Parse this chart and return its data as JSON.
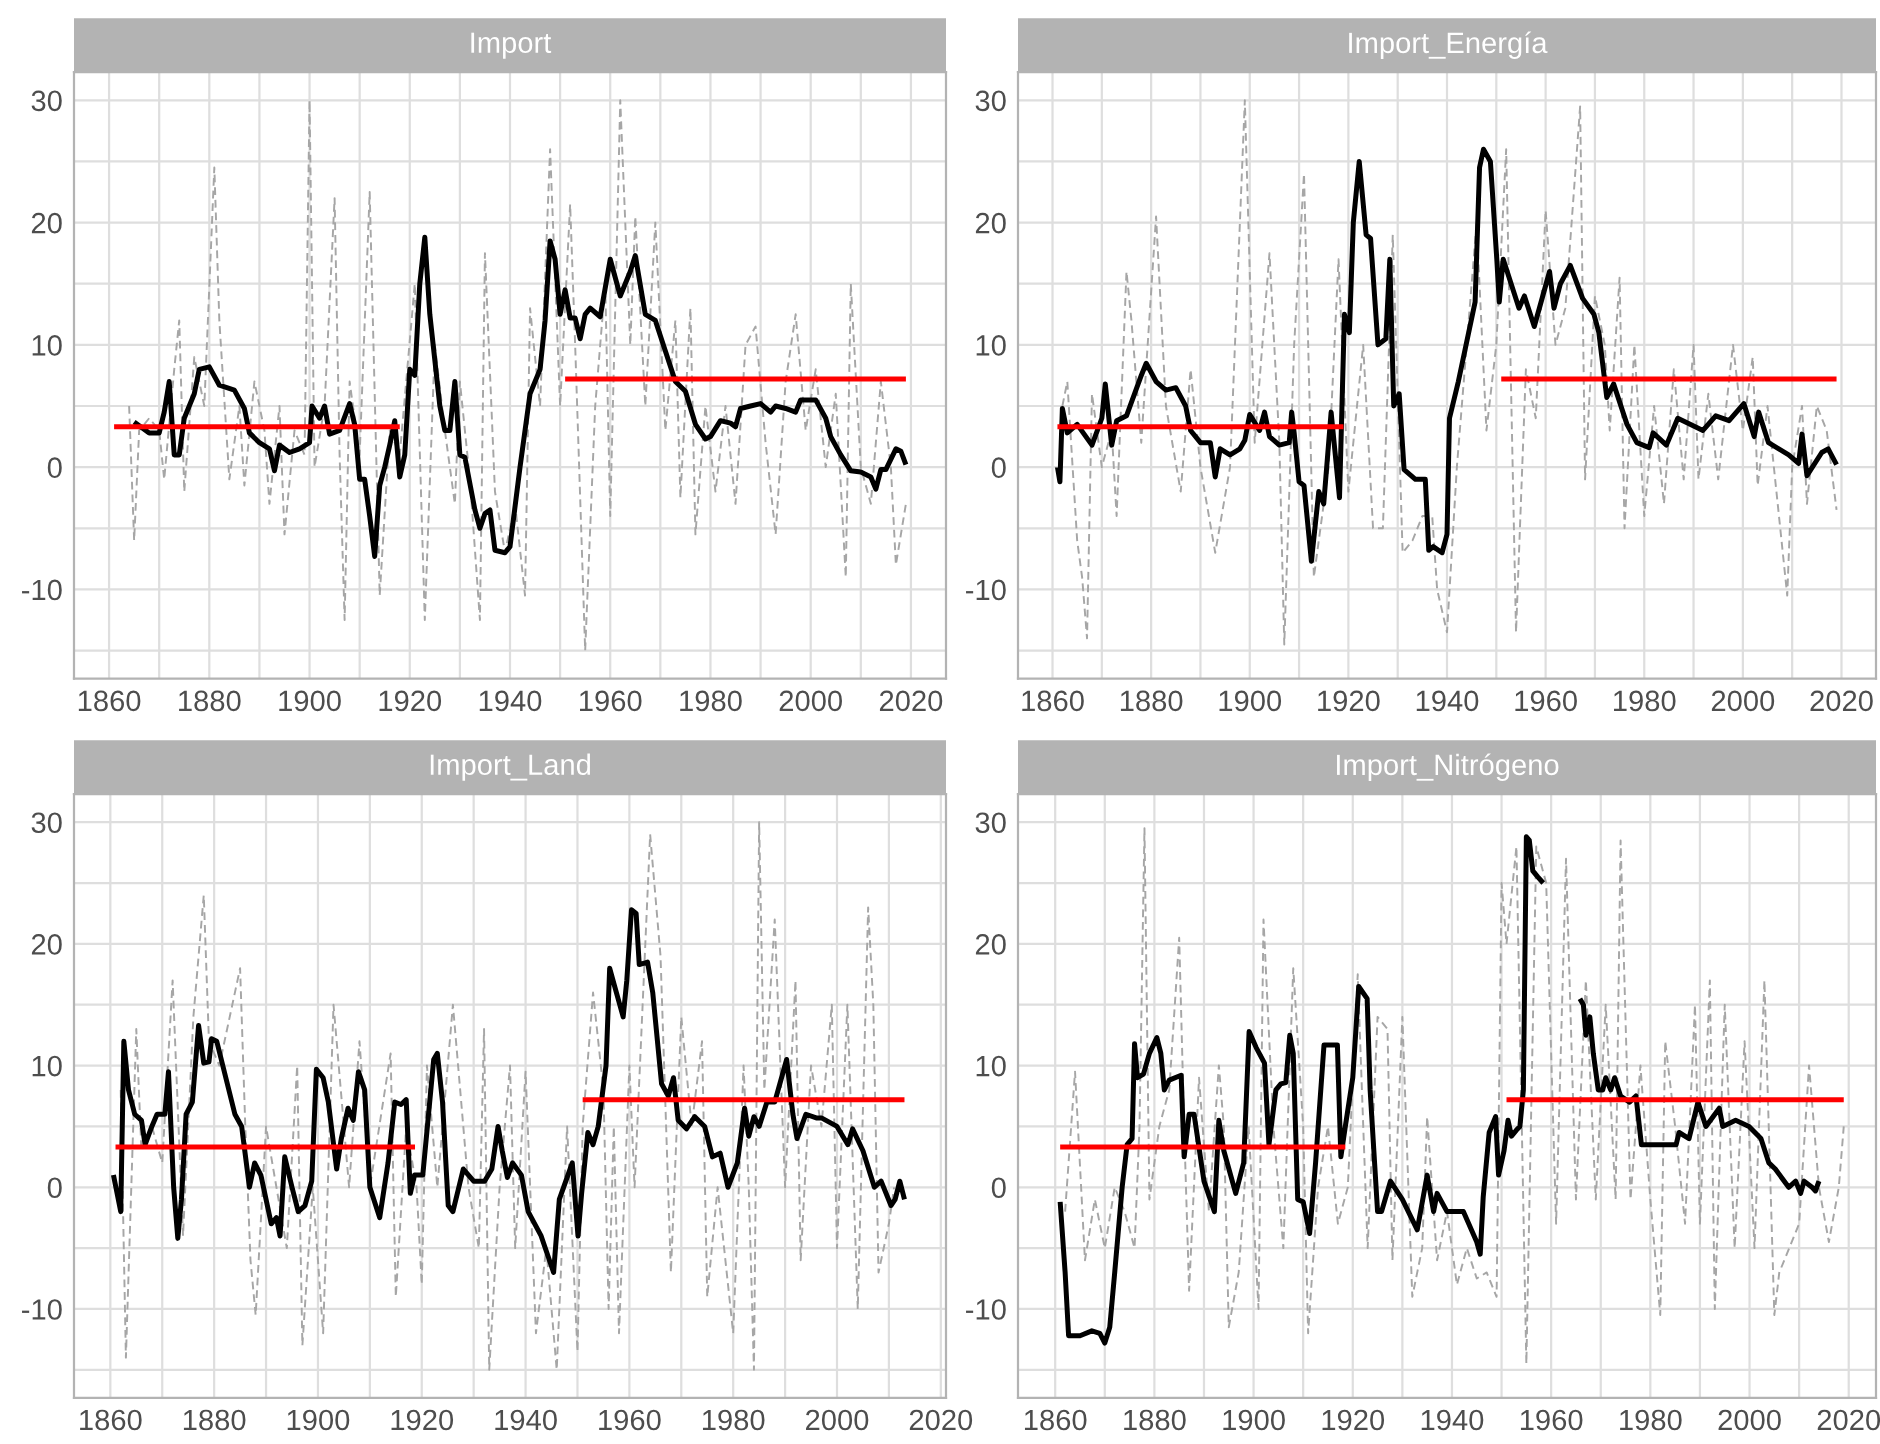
{
  "chart_data": [
    {
      "type": "line",
      "title": "Import",
      "xlim": [
        1853,
        2027
      ],
      "ylim": [
        -17.3,
        32.3
      ],
      "xticks": [
        1860,
        {
          "value": 1870,
          "label": null
        },
        1880,
        {
          "value": 1890,
          "label": null
        },
        1900,
        {
          "value": 1910,
          "label": null
        },
        1920,
        {
          "value": 1930,
          "label": null
        },
        1940,
        {
          "value": 1950,
          "label": null
        },
        1960,
        {
          "value": 1970,
          "label": null
        },
        1980,
        {
          "value": 1990,
          "label": null
        },
        2000,
        {
          "value": 2010,
          "label": null
        },
        2020
      ],
      "yticks": [
        {
          "value": -15,
          "label": null
        },
        -10,
        {
          "value": -5,
          "label": null
        },
        0,
        {
          "value": 5,
          "label": null
        },
        10,
        {
          "value": 15,
          "label": null
        },
        20,
        {
          "value": 25,
          "label": null
        },
        30
      ],
      "grid": true,
      "series": [
        {
          "color": "#a6a6a6",
          "line_style": "dashed",
          "x": [
            1864,
            1865,
            1866,
            1868,
            1870,
            1871,
            1873,
            1874,
            1875,
            1877,
            1879,
            1881,
            1882,
            1884,
            1886,
            1887,
            1889,
            1891,
            1892,
            1894,
            1895,
            1897,
            1899,
            1900,
            1901,
            1903,
            1905,
            1906,
            1907,
            1908,
            1910,
            1912,
            1914,
            1916,
            1918,
            1921,
            1923,
            1925,
            1927,
            1929,
            1930,
            1932,
            1934,
            1935,
            1937,
            1939,
            1941,
            1943,
            1944,
            1946,
            1948,
            1950,
            1952,
            1953,
            1955,
            1957,
            1959,
            1960,
            1962,
            1964,
            1965,
            1967,
            1969,
            1971,
            1973,
            1974,
            1976,
            1977,
            1979,
            1981,
            1983,
            1985,
            1987,
            1989,
            1991,
            1993,
            1995,
            1997,
            1999,
            2001,
            2003,
            2005,
            2007,
            2008,
            2010,
            2012,
            2014,
            2016,
            2017,
            2019
          ],
          "values": [
            5,
            -6,
            3,
            4,
            3,
            -1,
            8,
            12,
            -2,
            9,
            5,
            24.5,
            12,
            -1,
            5,
            -1.5,
            7,
            3,
            -3,
            5,
            -5.5,
            3,
            1,
            30,
            0,
            5,
            22,
            1,
            -12.5,
            7,
            1,
            22.5,
            -10.5,
            3,
            1,
            15,
            -12.5,
            10,
            3,
            -3,
            7,
            -1,
            -12.5,
            17.5,
            -2,
            -7,
            -3,
            -10.5,
            13,
            5,
            26,
            5,
            21.5,
            10,
            -15,
            5,
            15,
            -4,
            30,
            10,
            20.5,
            5,
            20,
            3,
            12,
            -2.5,
            13,
            -5.5,
            5,
            -2,
            5,
            -3,
            10,
            11.5,
            2,
            -5.5,
            7,
            12.5,
            3,
            8,
            0,
            6,
            -9,
            15,
            0,
            -3,
            7,
            0,
            -8,
            -3
          ]
        },
        {
          "color": "#000000",
          "line_style": "solid",
          "x": [
            1865,
            1868,
            1870,
            1871,
            1872,
            1873,
            1874,
            1875,
            1877,
            1878,
            1880,
            1882,
            1885,
            1887,
            1888,
            1890,
            1892,
            1893,
            1894,
            1896,
            1898,
            1900,
            1900.5,
            1902,
            1903,
            1904,
            1906,
            1908,
            1909,
            1910,
            1911,
            1912,
            1913,
            1914,
            1915,
            1916,
            1917,
            1918,
            1919,
            1920,
            1921,
            1922,
            1923,
            1924,
            1926,
            1927,
            1928,
            1929,
            1930,
            1931,
            1933,
            1934,
            1935,
            1936,
            1937,
            1939,
            1940,
            1942,
            1944,
            1946,
            1947,
            1948,
            1949,
            1950,
            1951,
            1952,
            1953,
            1954,
            1955,
            1956,
            1958,
            1960,
            1962,
            1964,
            1965,
            1967,
            1969,
            1971,
            1973,
            1975,
            1977,
            1979,
            1980,
            1982,
            1984,
            1985,
            1986,
            1988,
            1990,
            1992,
            1993,
            1995,
            1997,
            1998,
            2001,
            2003,
            2004,
            2006,
            2008,
            2010,
            2012,
            2013,
            2014,
            2015,
            2017,
            2018,
            2019
          ],
          "values": [
            3.7,
            2.8,
            2.8,
            4.5,
            7,
            1,
            1,
            4,
            6,
            8,
            8.2,
            6.7,
            6.3,
            4.8,
            2.8,
            2,
            1.5,
            -0.3,
            1.8,
            1.2,
            1.5,
            2,
            5,
            4,
            5,
            2.7,
            3,
            5.2,
            3.5,
            -1,
            -1,
            -4,
            -7.3,
            -1.5,
            0,
            1.8,
            3.8,
            -0.8,
            1,
            8,
            7.5,
            15,
            18.8,
            12.5,
            5,
            3,
            3,
            7,
            1,
            0.8,
            -3.5,
            -5,
            -3.8,
            -3.5,
            -6.8,
            -7,
            -6.5,
            0,
            6,
            8,
            12,
            18.5,
            17,
            12.5,
            14.5,
            12.2,
            12.2,
            10.5,
            12.5,
            13,
            12.3,
            17,
            14,
            16,
            17.3,
            12.5,
            12,
            9.5,
            7,
            6.2,
            3.5,
            2.3,
            2.5,
            3.8,
            3.6,
            3.3,
            4.8,
            5,
            5.2,
            4.5,
            5,
            4.8,
            4.5,
            5.5,
            5.5,
            4,
            2.5,
            1,
            -0.3,
            -0.4,
            -0.8,
            -1.8,
            -0.2,
            -0.2,
            1.5,
            1.3,
            0.2
          ]
        },
        {
          "color": "#ff0000",
          "line_style": "solid",
          "x": [
            1861,
            1918
          ],
          "values": [
            3.3,
            3.3
          ]
        },
        {
          "color": "#ff0000",
          "line_style": "solid",
          "x": [
            1951,
            2019
          ],
          "values": [
            7.2,
            7.2
          ]
        }
      ]
    },
    {
      "type": "line",
      "title": "Import_Energía",
      "xlim": [
        1853,
        2027
      ],
      "ylim": [
        -17.3,
        32.3
      ],
      "xticks": [
        1860,
        {
          "value": 1870,
          "label": null
        },
        1880,
        {
          "value": 1890,
          "label": null
        },
        1900,
        {
          "value": 1910,
          "label": null
        },
        1920,
        {
          "value": 1930,
          "label": null
        },
        1940,
        {
          "value": 1950,
          "label": null
        },
        1960,
        {
          "value": 1970,
          "label": null
        },
        1980,
        {
          "value": 1990,
          "label": null
        },
        2000,
        {
          "value": 2010,
          "label": null
        },
        2020
      ],
      "yticks": [
        {
          "value": -15,
          "label": null
        },
        -10,
        {
          "value": -5,
          "label": null
        },
        0,
        {
          "value": 5,
          "label": null
        },
        10,
        {
          "value": 15,
          "label": null
        },
        20,
        {
          "value": 25,
          "label": null
        },
        30
      ],
      "grid": true,
      "series": [
        {
          "color": "#a6a6a6",
          "line_style": "dashed",
          "x": [
            1862,
            1863,
            1865,
            1866,
            1867,
            1868,
            1870,
            1872,
            1873,
            1875,
            1876,
            1878,
            1881,
            1883,
            1886,
            1888,
            1890,
            1893,
            1896,
            1899,
            1901,
            1904,
            1906,
            1907,
            1909,
            1911,
            1913,
            1916,
            1918,
            1920,
            1923,
            1925,
            1927,
            1929,
            1931,
            1933,
            1935,
            1937,
            1938,
            1940,
            1942,
            1944,
            1946,
            1948,
            1950,
            1952,
            1954,
            1956,
            1958,
            1960,
            1962,
            1964,
            1967,
            1968,
            1970,
            1972,
            1973,
            1975,
            1976,
            1978,
            1980,
            1982,
            1984,
            1986,
            1988,
            1990,
            1991,
            1993,
            1995,
            1998,
            2000,
            2002,
            2003,
            2005,
            2009,
            2010,
            2012,
            2013,
            2015,
            2017,
            2019
          ],
          "values": [
            5,
            7,
            -6,
            -9,
            -14,
            6,
            0,
            3,
            -4,
            16,
            12,
            2,
            20.5,
            5,
            -2,
            8,
            0,
            -7,
            0,
            30,
            2,
            17.5,
            2,
            -14.5,
            10,
            24,
            -9,
            0,
            17,
            -2,
            10,
            -5,
            -5,
            19,
            -7,
            -6,
            -4,
            -4,
            -10,
            -13.5,
            0,
            10,
            20,
            3,
            10,
            26,
            -13.5,
            8,
            4,
            21,
            10,
            13,
            29.5,
            -1,
            14,
            10,
            3,
            15.5,
            -5,
            10,
            -4,
            5,
            -3,
            8,
            -1,
            10,
            -1,
            6,
            -1,
            10,
            3,
            9,
            -1.5,
            5,
            -10.5,
            0,
            5,
            -3,
            5,
            3,
            -3.5
          ]
        },
        {
          "color": "#000000",
          "line_style": "solid",
          "x": [
            1861,
            1861.5,
            1862,
            1863,
            1865,
            1868,
            1870,
            1870.7,
            1872,
            1873,
            1875,
            1878,
            1879,
            1881,
            1883,
            1885,
            1887,
            1888,
            1890,
            1892,
            1893,
            1894,
            1896,
            1898,
            1899,
            1900,
            1902,
            1903,
            1904,
            1906,
            1908,
            1908.5,
            1909,
            1910,
            1911,
            1912.5,
            1914,
            1915,
            1916.5,
            1918.2,
            1919.2,
            1920.2,
            1921,
            1922.2,
            1923.6,
            1924.5,
            1926,
            1927.6,
            1928.4,
            1929.2,
            1930.3,
            1931.3,
            1933.6,
            1935.6,
            1936.3,
            1937.2,
            1939,
            1940,
            1940.5,
            1942.3,
            1945.7,
            1946.6,
            1947.4,
            1948.8,
            1950.1,
            1950.6,
            1951.4,
            1953,
            1954.6,
            1955.7,
            1957.7,
            1960.8,
            1961.7,
            1963,
            1965,
            1967.5,
            1969.8,
            1970.8,
            1972.4,
            1973.8,
            1976.5,
            1978.5,
            1981,
            1981.8,
            1984.5,
            1986.8,
            1991.9,
            1994.5,
            1997.2,
            2000.2,
            2002.3,
            2003.2,
            2005.2,
            2009.3,
            2011.3,
            2012,
            2013,
            2016,
            2017.3,
            2019
          ],
          "values": [
            0,
            -1.2,
            4.8,
            2.8,
            3.5,
            1.8,
            4,
            6.8,
            1.8,
            3.8,
            4.2,
            7.5,
            8.5,
            7,
            6.3,
            6.5,
            5,
            3,
            2,
            2,
            -0.8,
            1.5,
            1,
            1.5,
            2.2,
            4.3,
            3,
            4.5,
            2.5,
            1.8,
            2,
            4.5,
            2.8,
            -1.2,
            -1.5,
            -7.7,
            -2,
            -3,
            4.5,
            -2.5,
            12.5,
            11,
            20,
            25,
            19,
            18.7,
            10,
            10.5,
            17,
            5,
            6,
            -0.2,
            -1,
            -1,
            -6.8,
            -6.5,
            -7,
            -5.5,
            4,
            7,
            13.5,
            24.5,
            26,
            25,
            17,
            13.5,
            17,
            15,
            13,
            14,
            11.5,
            16,
            13,
            15,
            16.5,
            13.8,
            12.5,
            11,
            5.7,
            6.8,
            3.5,
            2,
            1.6,
            2.8,
            1.8,
            4,
            3,
            4.2,
            3.8,
            5.2,
            2.5,
            4.5,
            2,
            1,
            0.3,
            2.7,
            -0.7,
            1.2,
            1.5,
            0.2
          ]
        },
        {
          "color": "#ff0000",
          "line_style": "solid",
          "x": [
            1861,
            1919
          ],
          "values": [
            3.3,
            3.3
          ]
        },
        {
          "color": "#ff0000",
          "line_style": "solid",
          "x": [
            1951,
            2019
          ],
          "values": [
            7.2,
            7.2
          ]
        }
      ]
    },
    {
      "type": "line",
      "title": "Import_Land",
      "xlim": [
        1853,
        2021
      ],
      "ylim": [
        -17.3,
        32.3
      ],
      "xticks": [
        1860,
        {
          "value": 1870,
          "label": null
        },
        1880,
        {
          "value": 1890,
          "label": null
        },
        1900,
        {
          "value": 1910,
          "label": null
        },
        1920,
        {
          "value": 1930,
          "label": null
        },
        1940,
        {
          "value": 1950,
          "label": null
        },
        1960,
        {
          "value": 1970,
          "label": null
        },
        1980,
        {
          "value": 1990,
          "label": null
        },
        2000,
        {
          "value": 2010,
          "label": null
        },
        2020
      ],
      "yticks": [
        {
          "value": -15,
          "label": null
        },
        -10,
        {
          "value": -5,
          "label": null
        },
        0,
        {
          "value": 5,
          "label": null
        },
        10,
        {
          "value": 15,
          "label": null
        },
        20,
        {
          "value": 25,
          "label": null
        },
        30
      ],
      "grid": true,
      "series": [
        {
          "color": "#a6a6a6",
          "line_style": "dashed",
          "x": [
            1862,
            1863,
            1865,
            1866,
            1868,
            1870,
            1872,
            1874,
            1876,
            1878,
            1879,
            1881,
            1885,
            1886,
            1887,
            1888,
            1890,
            1892,
            1894,
            1896,
            1897,
            1899,
            1901,
            1903,
            1905,
            1906,
            1908,
            1910,
            1914,
            1915,
            1917,
            1919,
            1920,
            1921,
            1923,
            1926,
            1927,
            1929,
            1931,
            1932,
            1933,
            1935,
            1937,
            1938,
            1940,
            1942,
            1944,
            1946,
            1948,
            1950,
            1951,
            1953,
            1955,
            1956,
            1957,
            1958,
            1960,
            1961,
            1964,
            1966,
            1968,
            1970,
            1972,
            1974,
            1975,
            1977,
            1980,
            1982,
            1983,
            1984,
            1985,
            1986,
            1988,
            1990,
            1992,
            1993,
            1995,
            1997,
            1999,
            2000,
            2002,
            2004,
            2006,
            2007,
            2008,
            2010,
            2011
          ],
          "values": [
            8,
            -14,
            13,
            3,
            5,
            2,
            17,
            -4,
            14,
            24,
            12,
            10,
            18,
            5,
            -6,
            -10.5,
            5,
            0,
            -5,
            10,
            -13,
            0,
            -12,
            15,
            5,
            0,
            12,
            0,
            11,
            -9,
            5,
            0,
            -8,
            10,
            0,
            15,
            10,
            0,
            -5,
            13,
            -15,
            0,
            10,
            -5,
            9.5,
            -12,
            -5,
            -15,
            5,
            -13.5,
            5,
            16,
            8,
            -10,
            5,
            -12,
            10,
            0,
            29,
            19,
            -7,
            14,
            5,
            12,
            -9,
            0,
            -12,
            10,
            0,
            -15,
            30,
            8,
            22,
            0,
            17,
            -6,
            10,
            5,
            15,
            -5,
            15,
            -10,
            23,
            15,
            -7,
            -3,
            0
          ]
        },
        {
          "color": "#000000",
          "line_style": "solid",
          "x": [
            1860.6,
            1862,
            1862.6,
            1863.5,
            1864.7,
            1866,
            1866.7,
            1868,
            1869,
            1870.5,
            1871.2,
            1872.2,
            1873,
            1873.7,
            1874.6,
            1875.8,
            1877,
            1878,
            1879,
            1879.5,
            1880.5,
            1884,
            1885.3,
            1886.8,
            1887.8,
            1889,
            1891,
            1892,
            1892.7,
            1893.6,
            1895,
            1896.2,
            1897.5,
            1898.8,
            1899.7,
            1901,
            1902,
            1903.6,
            1904.5,
            1905.8,
            1906.8,
            1907.8,
            1909,
            1910,
            1911.9,
            1913.5,
            1914.8,
            1916,
            1917,
            1917.8,
            1918.6,
            1920.2,
            1922.3,
            1923,
            1924,
            1925.1,
            1926,
            1928,
            1930,
            1932.1,
            1933.5,
            1934.7,
            1935.5,
            1936.5,
            1937.5,
            1939.2,
            1940.5,
            1943,
            1945.4,
            1946.5,
            1949,
            1950.1,
            1950.8,
            1952,
            1953,
            1954,
            1955.5,
            1956.2,
            1957.5,
            1958.8,
            1959.5,
            1960.4,
            1961.3,
            1961.9,
            1963.5,
            1964.5,
            1966.2,
            1967.5,
            1968.5,
            1969.4,
            1971,
            1972.6,
            1974.5,
            1976,
            1977.5,
            1979,
            1980.8,
            1982.2,
            1983,
            1984,
            1985,
            1986.5,
            1988,
            1990.3,
            1991.5,
            1992.3,
            1994,
            1996,
            1997,
            2000,
            2002.1,
            2003,
            2005,
            2007.2,
            2008.5,
            2010.4,
            2011.2,
            2012.1,
            2013
          ],
          "values": [
            1,
            -2,
            12,
            8,
            6,
            5.5,
            3.5,
            5,
            6,
            6,
            9.5,
            0,
            -4.2,
            -1,
            6,
            7,
            13.3,
            10.2,
            10.3,
            12.2,
            12,
            6,
            5,
            0,
            2,
            1,
            -3,
            -2.5,
            -4,
            2.5,
            0,
            -2,
            -1.5,
            0.5,
            9.7,
            9,
            7,
            1.5,
            4,
            6.5,
            5.5,
            9.5,
            8,
            0,
            -2.5,
            2,
            7,
            6.8,
            7.2,
            -0.5,
            1,
            1,
            10.5,
            11,
            7,
            -1.5,
            -2,
            1.5,
            0.5,
            0.5,
            1.5,
            5,
            3,
            0.8,
            2,
            1,
            -2,
            -4,
            -7,
            -1,
            2,
            -4,
            -0.5,
            4.5,
            3.5,
            5,
            10,
            18,
            16,
            14,
            17,
            22.8,
            22.5,
            18.3,
            18.5,
            16,
            8.5,
            7.5,
            9,
            5.5,
            4.8,
            5.8,
            5,
            2.5,
            2.8,
            0,
            2,
            6.5,
            4.2,
            5.8,
            5,
            7,
            7,
            10.5,
            6,
            4,
            6,
            5.7,
            5.7,
            5,
            3.5,
            4.8,
            3,
            0,
            0.5,
            -1.5,
            -1,
            0.5,
            -1
          ]
        },
        {
          "color": "#ff0000",
          "line_style": "solid",
          "x": [
            1861,
            1918.7
          ],
          "values": [
            3.3,
            3.3
          ]
        },
        {
          "color": "#ff0000",
          "line_style": "solid",
          "x": [
            1951,
            2013
          ],
          "values": [
            7.2,
            7.2
          ]
        }
      ]
    },
    {
      "type": "line",
      "title": "Import_Nitrógeno",
      "xlim": [
        1852.5,
        2025.5
      ],
      "ylim": [
        -17.3,
        32.3
      ],
      "xticks": [
        1860,
        {
          "value": 1870,
          "label": null
        },
        1880,
        {
          "value": 1890,
          "label": null
        },
        1900,
        {
          "value": 1910,
          "label": null
        },
        1920,
        {
          "value": 1930,
          "label": null
        },
        1940,
        {
          "value": 1950,
          "label": null
        },
        1960,
        {
          "value": 1970,
          "label": null
        },
        1980,
        {
          "value": 1990,
          "label": null
        },
        2000,
        {
          "value": 2010,
          "label": null
        },
        2020
      ],
      "yticks": [
        {
          "value": -15,
          "label": null
        },
        -10,
        {
          "value": -5,
          "label": null
        },
        0,
        {
          "value": 5,
          "label": null
        },
        10,
        {
          "value": 15,
          "label": null
        },
        20,
        {
          "value": 25,
          "label": null
        },
        30
      ],
      "grid": true,
      "series": [
        {
          "color": "#a6a6a6",
          "line_style": "dashed",
          "x": [
            1862,
            1864,
            1866,
            1868,
            1870,
            1872,
            1874,
            1876,
            1877,
            1878,
            1879,
            1881,
            1883,
            1885,
            1886,
            1887,
            1889,
            1891,
            1893,
            1894,
            1895,
            1897,
            1899,
            1901,
            1902,
            1904,
            1906,
            1908,
            1910,
            1911,
            1913,
            1915,
            1917,
            1919,
            1921,
            1923,
            1925,
            1927,
            1928,
            1930,
            1932,
            1934,
            1935,
            1937,
            1939,
            1941,
            1943,
            1945,
            1947,
            1949,
            1950,
            1951,
            1953,
            1955,
            1957,
            1959,
            1961,
            1963,
            1965,
            1967,
            1969,
            1971,
            1973,
            1974,
            1976,
            1978,
            1980,
            1982,
            1983,
            1985,
            1987,
            1989,
            1990,
            1992,
            1993,
            1995,
            1997,
            1999,
            2001,
            2003,
            2005,
            2006,
            2008,
            2010,
            2012,
            2014,
            2016,
            2018,
            2019
          ],
          "values": [
            -2,
            9.5,
            -6,
            -1,
            -5,
            0,
            -2,
            -5,
            5,
            29.5,
            -1,
            5,
            8,
            20.5,
            5,
            -8.5,
            9,
            -2,
            10,
            5,
            -11.5,
            -7,
            5,
            -10,
            22,
            5,
            -5,
            18,
            5,
            -12,
            0,
            5,
            -3,
            0,
            17.5,
            -5,
            14,
            13,
            -6,
            14,
            -9,
            -5,
            5.8,
            -6,
            -2,
            -8,
            -5,
            -7.5,
            -7,
            -9,
            25,
            20,
            28,
            -14.5,
            28,
            25,
            -3,
            27,
            -1,
            17,
            -1,
            15,
            -1,
            28.5,
            -1,
            10,
            -1,
            -10.5,
            12,
            5,
            -3,
            15,
            -3,
            17,
            -10,
            15,
            -5,
            12,
            -5,
            17,
            -10.5,
            -7,
            -5,
            -3,
            10,
            0,
            -4.5,
            0,
            5
          ]
        },
        {
          "color": "#000000",
          "line_style": "solid",
          "x": [
            1861,
            1862,
            1862.7,
            1865,
            1867.4,
            1869,
            1870,
            1871,
            1872,
            1873.5,
            1874.5,
            1875.5,
            1876,
            1876.6,
            1877.8,
            1879,
            1880.5,
            1881.3,
            1882,
            1883,
            1885.4,
            1886,
            1887,
            1888,
            1890,
            1892.1,
            1893,
            1894,
            1896.4,
            1898,
            1899.1,
            1900.5,
            1902.2,
            1903.1,
            1904.5,
            1905.5,
            1906.5,
            1907.3,
            1908,
            1908.9,
            1910,
            1911.3,
            1912.5,
            1914.2,
            1916.9,
            1917.6,
            1918.5,
            1920,
            1921.2,
            1922.9,
            1923.5,
            1925,
            1925.8,
            1927.6,
            1930,
            1933,
            1935,
            1936.3,
            1937,
            1939,
            1942.3,
            1945,
            1945.7,
            1946.3,
            1947.5,
            1948.8,
            1949.4,
            1950.5,
            1951.3,
            1952,
            1953,
            1953.7,
            1954.4,
            1955,
            1955.6,
            1956.3,
            1957.3,
            1958.4,
            null,
            1965.8,
            1966.5,
            1967,
            1967.8,
            1968.5,
            1969.5,
            1970.4,
            1971,
            1972,
            1972.8,
            1974,
            1975.8,
            1977.1,
            1978.2,
            1985.2,
            1985.8,
            1987.8,
            1989.6,
            1991.2,
            1993.9,
            1994.6,
            1997.2,
            1999.9,
            2002.3,
            2003.9,
            2005.2,
            2007.9,
            2009.3,
            2010.3,
            2011,
            2012.6,
            2013.3,
            2014
          ],
          "values": [
            -1.2,
            -7,
            -12.2,
            -12.2,
            -11.8,
            -12,
            -12.8,
            -11.5,
            -7,
            0,
            3.5,
            4,
            11.8,
            9,
            9.3,
            11,
            12.3,
            11,
            8,
            8.8,
            9.2,
            2.5,
            6,
            6,
            0.5,
            -2,
            5.5,
            3,
            -0.5,
            2,
            12.8,
            11.5,
            10.2,
            3.5,
            8,
            8.5,
            8.6,
            12.5,
            11,
            -1,
            -1.2,
            -3.8,
            2,
            11.7,
            11.7,
            2.5,
            5,
            9,
            16.5,
            15.5,
            8,
            -2,
            -2,
            0.5,
            -1,
            -3.5,
            1,
            -2,
            -0.5,
            -2,
            -2,
            -4.5,
            -5.5,
            -0.8,
            4.5,
            5.8,
            1,
            3,
            5.5,
            4.2,
            4.7,
            5,
            8,
            28.8,
            28.5,
            26,
            25.5,
            25,
            null,
            15.5,
            15,
            12.5,
            14,
            11,
            8,
            8,
            9,
            8,
            9,
            7.5,
            7,
            7.5,
            3.5,
            3.5,
            4.5,
            4,
            7,
            5,
            6.5,
            5,
            5.5,
            5,
            4,
            2,
            1.5,
            0,
            0.5,
            -0.5,
            0.5,
            0,
            -0.3,
            0.5
          ]
        },
        {
          "color": "#ff0000",
          "line_style": "solid",
          "x": [
            1861,
            1918.5
          ],
          "values": [
            3.3,
            3.3
          ]
        },
        {
          "color": "#ff0000",
          "line_style": "solid",
          "x": [
            1951,
            2019
          ],
          "values": [
            7.2,
            7.2
          ]
        }
      ]
    }
  ]
}
